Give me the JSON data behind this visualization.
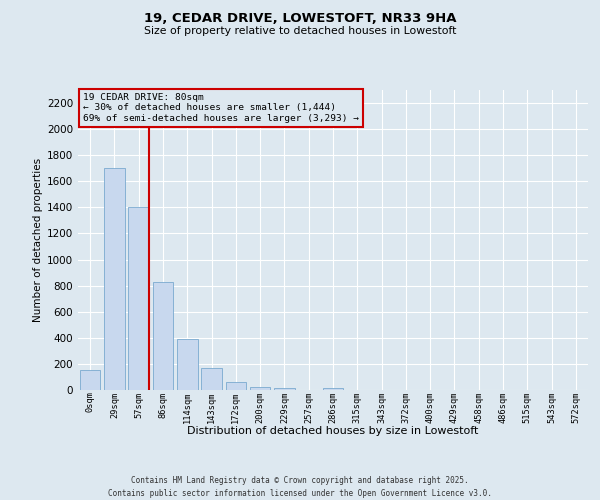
{
  "title_line1": "19, CEDAR DRIVE, LOWESTOFT, NR33 9HA",
  "title_line2": "Size of property relative to detached houses in Lowestoft",
  "xlabel": "Distribution of detached houses by size in Lowestoft",
  "ylabel": "Number of detached properties",
  "bar_color": "#c8d8ee",
  "bar_edge_color": "#7aaad0",
  "categories": [
    "0sqm",
    "29sqm",
    "57sqm",
    "86sqm",
    "114sqm",
    "143sqm",
    "172sqm",
    "200sqm",
    "229sqm",
    "257sqm",
    "286sqm",
    "315sqm",
    "343sqm",
    "372sqm",
    "400sqm",
    "429sqm",
    "458sqm",
    "486sqm",
    "515sqm",
    "543sqm",
    "572sqm"
  ],
  "values": [
    150,
    1700,
    1400,
    830,
    390,
    170,
    65,
    25,
    15,
    0,
    15,
    0,
    0,
    0,
    0,
    0,
    0,
    0,
    0,
    0,
    0
  ],
  "ylim": [
    0,
    2300
  ],
  "yticks": [
    0,
    200,
    400,
    600,
    800,
    1000,
    1200,
    1400,
    1600,
    1800,
    2000,
    2200
  ],
  "vline_x": 2.42,
  "annotation_title": "19 CEDAR DRIVE: 80sqm",
  "annotation_line1": "← 30% of detached houses are smaller (1,444)",
  "annotation_line2": "69% of semi-detached houses are larger (3,293) →",
  "vline_color": "#cc0000",
  "background_color": "#dde8f0",
  "grid_color": "#ffffff",
  "footer_line1": "Contains HM Land Registry data © Crown copyright and database right 2025.",
  "footer_line2": "Contains public sector information licensed under the Open Government Licence v3.0."
}
